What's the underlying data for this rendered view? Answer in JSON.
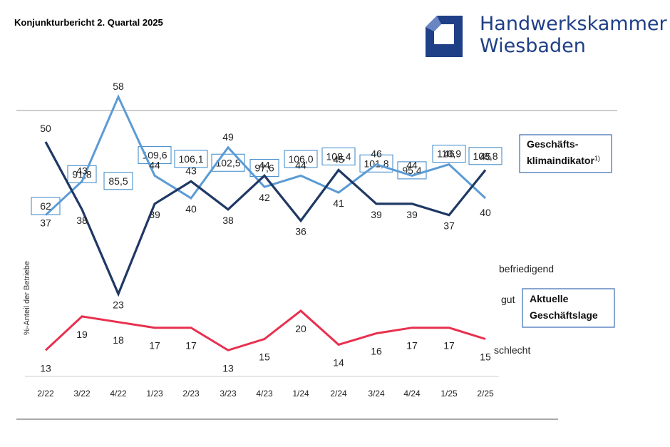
{
  "header": {
    "report_title": "Konjunkturbericht 2. Quartal 2025",
    "brand_line1": "Handwerkskammer",
    "brand_line2": "Wiesbaden",
    "brand_color": "#1f3f86"
  },
  "chart_data": {
    "type": "line",
    "categories": [
      "2/22",
      "3/22",
      "4/22",
      "1/23",
      "2/23",
      "3/23",
      "4/23",
      "1/24",
      "2/24",
      "3/24",
      "4/24",
      "1/25",
      "2/25"
    ],
    "ylabel": "%-Anteil der Betriebe",
    "series": [
      {
        "key": "befriedigend",
        "name": "befriedigend",
        "color": "#5b9bd5",
        "values": [
          37,
          43,
          58,
          44,
          40,
          49,
          42,
          44,
          41,
          46,
          44,
          46,
          40
        ]
      },
      {
        "key": "gut",
        "name": "gut",
        "color": "#1f3864",
        "values": [
          50,
          38,
          23,
          39,
          43,
          38,
          44,
          36,
          45,
          39,
          39,
          37,
          45
        ]
      },
      {
        "key": "schlecht",
        "name": "schlecht",
        "color": "#e8304f",
        "values": [
          13,
          19,
          18,
          17,
          17,
          13,
          15,
          20,
          14,
          16,
          17,
          17,
          15
        ]
      }
    ],
    "indicator": {
      "name": "Geschäftsklimaindikator",
      "title_line1": "Geschäfts-",
      "title_line2": "klimaindikator",
      "footnote": "1)",
      "labels": [
        "62",
        "91,8",
        "85,5",
        "109,6",
        "106,1",
        "102,5",
        "97,6",
        "106,0",
        "108,4",
        "101,8",
        "95,4",
        "110,9",
        "108,8"
      ],
      "values": [
        62,
        91.8,
        85.5,
        109.6,
        106.1,
        102.5,
        97.6,
        106.0,
        108.4,
        101.8,
        95.4,
        110.9,
        108.8
      ]
    },
    "box_label_line1": "Aktuelle",
    "box_label_line2": "Geschäftslage"
  }
}
